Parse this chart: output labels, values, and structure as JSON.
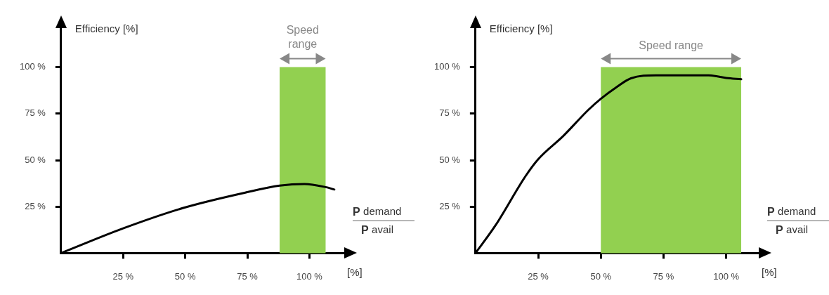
{
  "chart_data": [
    {
      "type": "line",
      "ylabel": "Efficiency [%]",
      "xlabel": "[%]",
      "annotations": [
        "P demand",
        "P avail"
      ],
      "marker": "none",
      "grid": false,
      "xlim": [
        0,
        114
      ],
      "xticks": [
        {
          "value": 25,
          "label": "25 %"
        },
        {
          "value": 50,
          "label": "50 %"
        },
        {
          "value": 75,
          "label": "75 %"
        },
        {
          "value": 100,
          "label": "100 %"
        }
      ],
      "ylim": [
        0,
        121
      ],
      "yticks": [
        {
          "value": 25,
          "label": "25 %"
        },
        {
          "value": 50,
          "label": "50 %"
        },
        {
          "value": 75,
          "label": "75 %"
        },
        {
          "value": 100,
          "label": "100 %"
        }
      ],
      "bands": [
        {
          "axis": "x",
          "from": 88,
          "to": 106.5,
          "label": "Speed range",
          "color": "#92d050"
        }
      ],
      "series": [
        {
          "color": "#000000",
          "x": [
            0,
            25,
            50,
            75,
            88,
            98,
            106.5,
            110
          ],
          "values": [
            0,
            13.3,
            24.6,
            32.8,
            36.3,
            37.2,
            35.5,
            34.2
          ]
        }
      ]
    },
    {
      "type": "line",
      "ylabel": "Efficiency [%]",
      "xlabel": "[%]",
      "annotations": [
        "P demand",
        "P avail"
      ],
      "marker": "none",
      "grid": false,
      "xlim": [
        0,
        113
      ],
      "xticks": [
        {
          "value": 25,
          "label": "25 %"
        },
        {
          "value": 50,
          "label": "50 %"
        },
        {
          "value": 75,
          "label": "75 %"
        },
        {
          "value": 100,
          "label": "100 %"
        }
      ],
      "ylim": [
        0,
        121
      ],
      "yticks": [
        {
          "value": 25,
          "label": "25 %"
        },
        {
          "value": 50,
          "label": "50 %"
        },
        {
          "value": 75,
          "label": "75 %"
        },
        {
          "value": 100,
          "label": "100 %"
        }
      ],
      "bands": [
        {
          "axis": "x",
          "from": 50,
          "to": 106,
          "label": "Speed range",
          "color": "#92d050"
        }
      ],
      "series": [
        {
          "color": "#000000",
          "x": [
            0,
            8,
            20,
            25,
            35,
            45,
            50,
            56,
            62,
            72,
            93,
            100,
            106
          ],
          "values": [
            0,
            15,
            41.5,
            50.5,
            63,
            77,
            83,
            89,
            94,
            95.6,
            95.6,
            94.2,
            93.5
          ]
        }
      ]
    }
  ]
}
